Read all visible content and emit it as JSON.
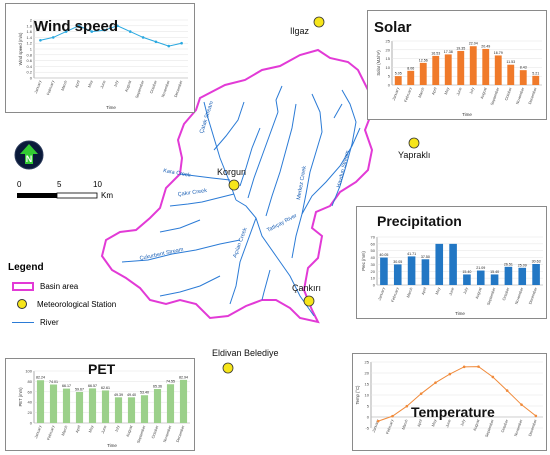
{
  "stations": {
    "ilgaz": "Ilgaz",
    "korgun": "Korgun",
    "yaprakli": "Yapraklı",
    "cankiri": "Çankırı",
    "eldivan": "Eldivan Belediye"
  },
  "streams": {
    "catak": "Çatak Stream",
    "kara": "Kara Creek",
    "cakir": "Çakır Creek",
    "merkez": "Merkez Creek",
    "havdun": "Havdun Stream",
    "tatlicay": "Tatlıçay River",
    "acilan": "Açılan Creek",
    "cukurbent": "Çukurbent Stream"
  },
  "scale": {
    "zero": "0",
    "five": "5",
    "ten": "10",
    "unit": "Km"
  },
  "legend": {
    "title": "Legend",
    "basin": "Basin area",
    "station": "Meteorological Station",
    "river": "River"
  },
  "colors": {
    "basin_border": "#e23ad6",
    "river": "#2b7bd6",
    "station": "#f6e51a",
    "wind_line": "#29a8e0",
    "solar_bar": "#f07a2a",
    "precip_bar": "#2277c4",
    "pet_bar": "#9bd08a",
    "temp_line": "#f08a3a"
  },
  "months": [
    "January",
    "February",
    "March",
    "April",
    "May",
    "June",
    "July",
    "August",
    "September",
    "October",
    "November",
    "December"
  ],
  "chart_data": [
    {
      "type": "line",
      "title": "Wind speed",
      "xlabel": "Time",
      "ylabel": "Wind speed (m/s)",
      "ylim": [
        0,
        2
      ],
      "yticks": [
        "0",
        "0.2",
        "0.4",
        "0.6",
        "0.8",
        "1",
        "1.2",
        "1.4",
        "1.6",
        "1.8",
        "2"
      ],
      "values": [
        1.3,
        1.4,
        1.6,
        1.8,
        1.6,
        1.65,
        1.8,
        1.6,
        1.4,
        1.25,
        1.1,
        1.2
      ]
    },
    {
      "type": "bar",
      "title": "Solar",
      "xlabel": "Time",
      "ylabel": "Solar (MJ/m²)",
      "ylim": [
        0,
        25
      ],
      "yticks": [
        "0",
        "5",
        "10",
        "15",
        "20",
        "25"
      ],
      "values": [
        5.05,
        8.06,
        12.56,
        16.53,
        17.38,
        19.35,
        22.04,
        20.49,
        16.79,
        11.53,
        8.43,
        5.21
      ],
      "labels": [
        "5.05",
        "8.06",
        "12.56",
        "16.53",
        "17.38",
        "19.35",
        "22.04",
        "20.49",
        "16.79",
        "11.53",
        "8.43",
        "5.21"
      ]
    },
    {
      "type": "bar",
      "title": "Precipitation",
      "xlabel": "Time",
      "ylabel": "Prec (mm)",
      "ylim": [
        0,
        70
      ],
      "yticks": [
        "0",
        "10",
        "20",
        "30",
        "40",
        "50",
        "60",
        "70"
      ],
      "values": [
        40.05,
        30.05,
        41.71,
        37.5,
        60.0,
        60.0,
        15.4,
        21.09,
        15.4,
        26.51,
        25.09,
        30.63
      ],
      "labels": [
        "40.05",
        "30.05",
        "41.71",
        "37.50",
        "",
        "",
        "15.40",
        "21.09",
        "15.40",
        "26.51",
        "25.09",
        "30.63"
      ]
    },
    {
      "type": "bar",
      "title": "PET",
      "xlabel": "Time",
      "ylabel": "PET (mm)",
      "ylim": [
        0,
        100
      ],
      "yticks": [
        "0",
        "20",
        "40",
        "60",
        "80",
        "100"
      ],
      "values": [
        82.24,
        74.01,
        66.17,
        59.67,
        66.57,
        62.61,
        49.39,
        49.4,
        53.4,
        65.36,
        74.55,
        82.94
      ],
      "labels": [
        "82.24",
        "74.01",
        "66.17",
        "59.67",
        "66.57",
        "62.61",
        "49.39",
        "49.40",
        "53.40",
        "65.36",
        "74.55",
        "82.94"
      ]
    },
    {
      "type": "line",
      "title": "Temperature",
      "xlabel": "",
      "ylabel": "Temp (°C)",
      "ylim": [
        -5,
        25
      ],
      "yticks": [
        "-5",
        "0",
        "5",
        "10",
        "15",
        "20",
        "25"
      ],
      "values": [
        -1.9,
        0.4,
        4.9,
        10.6,
        15.6,
        19.5,
        22.8,
        22.9,
        18.2,
        12.0,
        5.6,
        0.5
      ]
    }
  ]
}
